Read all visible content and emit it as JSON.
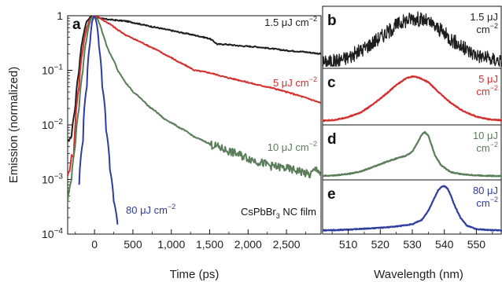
{
  "chart_data": [
    {
      "panel": "a",
      "type": "line",
      "xlabel": "Time (ps)",
      "ylabel": "Emission (normalized)",
      "xlim": [
        -350,
        2950
      ],
      "ylim": [
        0.0001,
        1
      ],
      "yscale": "log",
      "xticks": [
        0,
        500,
        1000,
        1500,
        2000,
        2500
      ],
      "xtick_labels": [
        "0",
        "500",
        "1,000",
        "1,500",
        "2,000",
        "2,500"
      ],
      "yticks": [
        1,
        0.1,
        0.01,
        0.001,
        0.0001
      ],
      "ytick_labels": [
        {
          "base": "1",
          "exp": ""
        },
        {
          "base": "10",
          "exp": "−1"
        },
        {
          "base": "10",
          "exp": "−2"
        },
        {
          "base": "10",
          "exp": "−3"
        },
        {
          "base": "10",
          "exp": "−4"
        }
      ],
      "annotation": {
        "main": "CsPbBr",
        "sub": "3",
        "rest": " NC film"
      },
      "series": [
        {
          "name": "1.5 μJ cm−2",
          "label_main": "1.5 μJ cm",
          "label_exp": "−2",
          "color": "#1e1e1e",
          "x": [
            -350,
            -300,
            -250,
            -200,
            -150,
            -100,
            -50,
            0,
            50,
            100,
            200,
            300,
            400,
            500,
            700,
            900,
            1100,
            1300,
            1500,
            1600,
            1700,
            1900,
            2100,
            2300,
            2500,
            2700,
            2950
          ],
          "y": [
            0.005,
            0.006,
            0.02,
            0.1,
            0.4,
            0.8,
            0.95,
            1,
            0.93,
            0.88,
            0.85,
            0.82,
            0.8,
            0.75,
            0.65,
            0.57,
            0.5,
            0.44,
            0.38,
            0.3,
            0.3,
            0.28,
            0.27,
            0.25,
            0.23,
            0.22,
            0.2
          ]
        },
        {
          "name": "5 μJ cm−2",
          "label_main": "5 μJ cm",
          "label_exp": "−2",
          "color": "#d62d2d",
          "x": [
            -350,
            -320,
            -300,
            -270,
            -250,
            -200,
            -150,
            -100,
            -50,
            0,
            50,
            100,
            200,
            300,
            400,
            500,
            700,
            900,
            1100,
            1300,
            1500,
            1700,
            1900,
            2100,
            2300,
            2500,
            2700,
            2950
          ],
          "y": [
            0.0012,
            0.0015,
            0.0028,
            0.0025,
            0.01,
            0.05,
            0.25,
            0.6,
            0.9,
            1,
            0.95,
            0.85,
            0.7,
            0.55,
            0.45,
            0.38,
            0.28,
            0.2,
            0.14,
            0.1,
            0.09,
            0.075,
            0.065,
            0.055,
            0.048,
            0.04,
            0.033,
            0.025
          ]
        },
        {
          "name": "10 μJ cm−2",
          "label_main": "10 μJ cm",
          "label_exp": "−2",
          "color": "#5a7d5a",
          "x": [
            -350,
            -300,
            -250,
            -200,
            -150,
            -100,
            -50,
            0,
            50,
            100,
            150,
            200,
            300,
            400,
            500,
            700,
            900,
            1100,
            1300,
            1500,
            1700,
            1900,
            2000,
            2100,
            2300,
            2500,
            2700,
            2800,
            2900,
            2950
          ],
          "y": [
            0.0004,
            0.001,
            0.004,
            0.02,
            0.1,
            0.4,
            0.85,
            1,
            0.8,
            0.5,
            0.3,
            0.2,
            0.1,
            0.06,
            0.04,
            0.022,
            0.013,
            0.009,
            0.006,
            0.0045,
            0.0035,
            0.0028,
            0.0025,
            0.0022,
            0.0018,
            0.0016,
            0.0014,
            0.0012,
            0.0016,
            0.0012
          ]
        },
        {
          "name": "80 μJ cm−2",
          "label_main": "80 μJ cm",
          "label_exp": "−2",
          "color": "#2e3d9e",
          "x": [
            -200,
            -150,
            -100,
            -60,
            -30,
            0,
            30,
            60,
            100,
            150,
            200,
            250,
            300
          ],
          "y": [
            0.0008,
            0.005,
            0.05,
            0.3,
            0.8,
            1,
            0.7,
            0.25,
            0.05,
            0.008,
            0.0015,
            0.0004,
            0.00015
          ]
        }
      ]
    },
    {
      "panel": "b",
      "type": "line",
      "series_label_main": "1.5 μJ",
      "series_label_line2": "cm",
      "series_label_exp": "−2",
      "color": "#1e1e1e",
      "xlim": [
        502,
        558
      ],
      "noisy": true,
      "x": [
        502,
        506,
        510,
        514,
        518,
        522,
        526,
        530,
        534,
        538,
        542,
        546,
        550,
        554,
        558
      ],
      "y": [
        0.05,
        0.08,
        0.15,
        0.28,
        0.45,
        0.62,
        0.8,
        0.9,
        0.85,
        0.7,
        0.5,
        0.32,
        0.2,
        0.12,
        0.08
      ]
    },
    {
      "panel": "c",
      "type": "line",
      "series_label_main": "5 μJ",
      "series_label_line2": "cm",
      "series_label_exp": "−2",
      "color": "#d62d2d",
      "xlim": [
        502,
        558
      ],
      "x": [
        502,
        506,
        510,
        514,
        518,
        522,
        525,
        528,
        530,
        532,
        535,
        538,
        542,
        546,
        550,
        554,
        558
      ],
      "y": [
        0.02,
        0.04,
        0.1,
        0.2,
        0.38,
        0.6,
        0.78,
        0.92,
        0.96,
        0.94,
        0.84,
        0.64,
        0.4,
        0.22,
        0.11,
        0.05,
        0.03
      ]
    },
    {
      "panel": "d",
      "type": "line",
      "series_label_main": "10 μJ",
      "series_label_line2": "cm",
      "series_label_exp": "−2",
      "color": "#5a7d5a",
      "xlim": [
        502,
        558
      ],
      "x": [
        502,
        506,
        510,
        514,
        518,
        522,
        525,
        528,
        530,
        532,
        533,
        534,
        535,
        536,
        537,
        539,
        542,
        546,
        550,
        554,
        558
      ],
      "y": [
        0.02,
        0.03,
        0.06,
        0.12,
        0.22,
        0.33,
        0.4,
        0.46,
        0.55,
        0.8,
        0.93,
        0.98,
        0.9,
        0.7,
        0.48,
        0.25,
        0.1,
        0.05,
        0.03,
        0.02,
        0.015
      ]
    },
    {
      "panel": "e",
      "type": "line",
      "series_label_main": "80 μJ",
      "series_label_line2": "cm",
      "series_label_exp": "−2",
      "color": "#2e3d9e",
      "xlim": [
        502,
        558
      ],
      "xticks": [
        510,
        520,
        530,
        540,
        550
      ],
      "xtick_labels": [
        "510",
        "520",
        "530",
        "540",
        "550"
      ],
      "xlabel": "Wavelength (nm)",
      "x": [
        502,
        510,
        520,
        525,
        530,
        533,
        535,
        537,
        538,
        539,
        540,
        541,
        542,
        543,
        545,
        547,
        550,
        554,
        558
      ],
      "y": [
        0.01,
        0.03,
        0.07,
        0.1,
        0.15,
        0.25,
        0.45,
        0.75,
        0.9,
        0.98,
        1,
        0.95,
        0.8,
        0.6,
        0.3,
        0.12,
        0.04,
        0.02,
        0.01
      ]
    }
  ]
}
